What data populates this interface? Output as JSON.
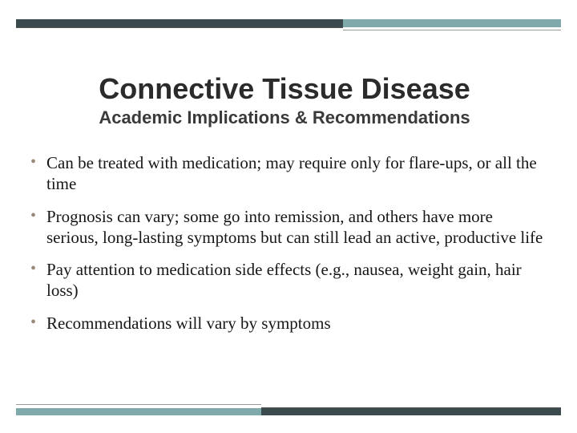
{
  "decor": {
    "dark_color": "#3a4a4d",
    "teal_color": "#7fa9ab",
    "bullet_color": "#9b8a7a"
  },
  "title": "Connective Tissue Disease",
  "subtitle": "Academic Implications & Recommendations",
  "bullets": [
    "Can be treated with medication; may require only for flare-ups, or all the time",
    "Prognosis can vary; some go into remission, and others have more serious, long-lasting symptoms but can still lead an active, productive life",
    "Pay attention to medication side effects (e.g., nausea, weight gain, hair loss)",
    "Recommendations will vary by symptoms"
  ]
}
